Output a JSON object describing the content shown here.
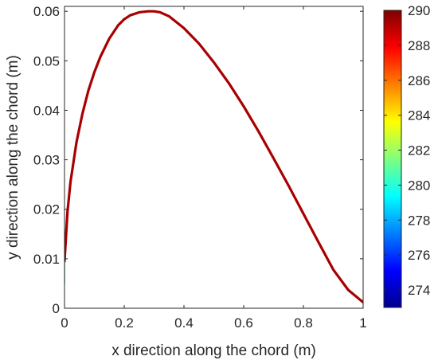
{
  "chart_data": {
    "type": "line",
    "title": "",
    "xlabel": "x direction along the chord (m)",
    "ylabel": "y direction along the chord (m)",
    "xlim": [
      0,
      1
    ],
    "ylim": [
      0,
      0.061
    ],
    "x_ticks": [
      0,
      0.2,
      0.4,
      0.6,
      0.8,
      1
    ],
    "x_tick_labels": [
      "0",
      "0.2",
      "0.4",
      "0.6",
      "0.8",
      "1"
    ],
    "y_ticks": [
      0,
      0.01,
      0.02,
      0.03,
      0.04,
      0.05,
      0.06
    ],
    "y_tick_labels": [
      "0",
      "0.01",
      "0.02",
      "0.03",
      "0.04",
      "0.05",
      "0.06"
    ],
    "grid": false,
    "box": true,
    "colorbar": {
      "colormap": "jet",
      "range": [
        273,
        290
      ],
      "ticks": [
        274,
        276,
        278,
        280,
        282,
        284,
        286,
        288,
        290
      ],
      "tick_labels": [
        "274",
        "276",
        "278",
        "280",
        "282",
        "284",
        "286",
        "288",
        "290"
      ]
    },
    "series": [
      {
        "color": "#a80000",
        "x": [
          0,
          0.01,
          0.02,
          0.04,
          0.06,
          0.08,
          0.1,
          0.12,
          0.15,
          0.18,
          0.2,
          0.22,
          0.25,
          0.28,
          0.3,
          0.32,
          0.35,
          0.4,
          0.45,
          0.5,
          0.55,
          0.6,
          0.65,
          0.7,
          0.75,
          0.8,
          0.85,
          0.9,
          0.95,
          1.0
        ],
        "y": [
          0.0095,
          0.0195,
          0.0255,
          0.0335,
          0.0393,
          0.044,
          0.0477,
          0.0508,
          0.0545,
          0.0572,
          0.0584,
          0.0592,
          0.0598,
          0.06,
          0.06,
          0.0598,
          0.059,
          0.0566,
          0.0535,
          0.0497,
          0.0455,
          0.0408,
          0.0357,
          0.0303,
          0.0248,
          0.0191,
          0.0134,
          0.0078,
          0.0037,
          0.0012
        ]
      }
    ],
    "edge_color_value": 290,
    "leading_edge_color": "#3fbf7f"
  }
}
